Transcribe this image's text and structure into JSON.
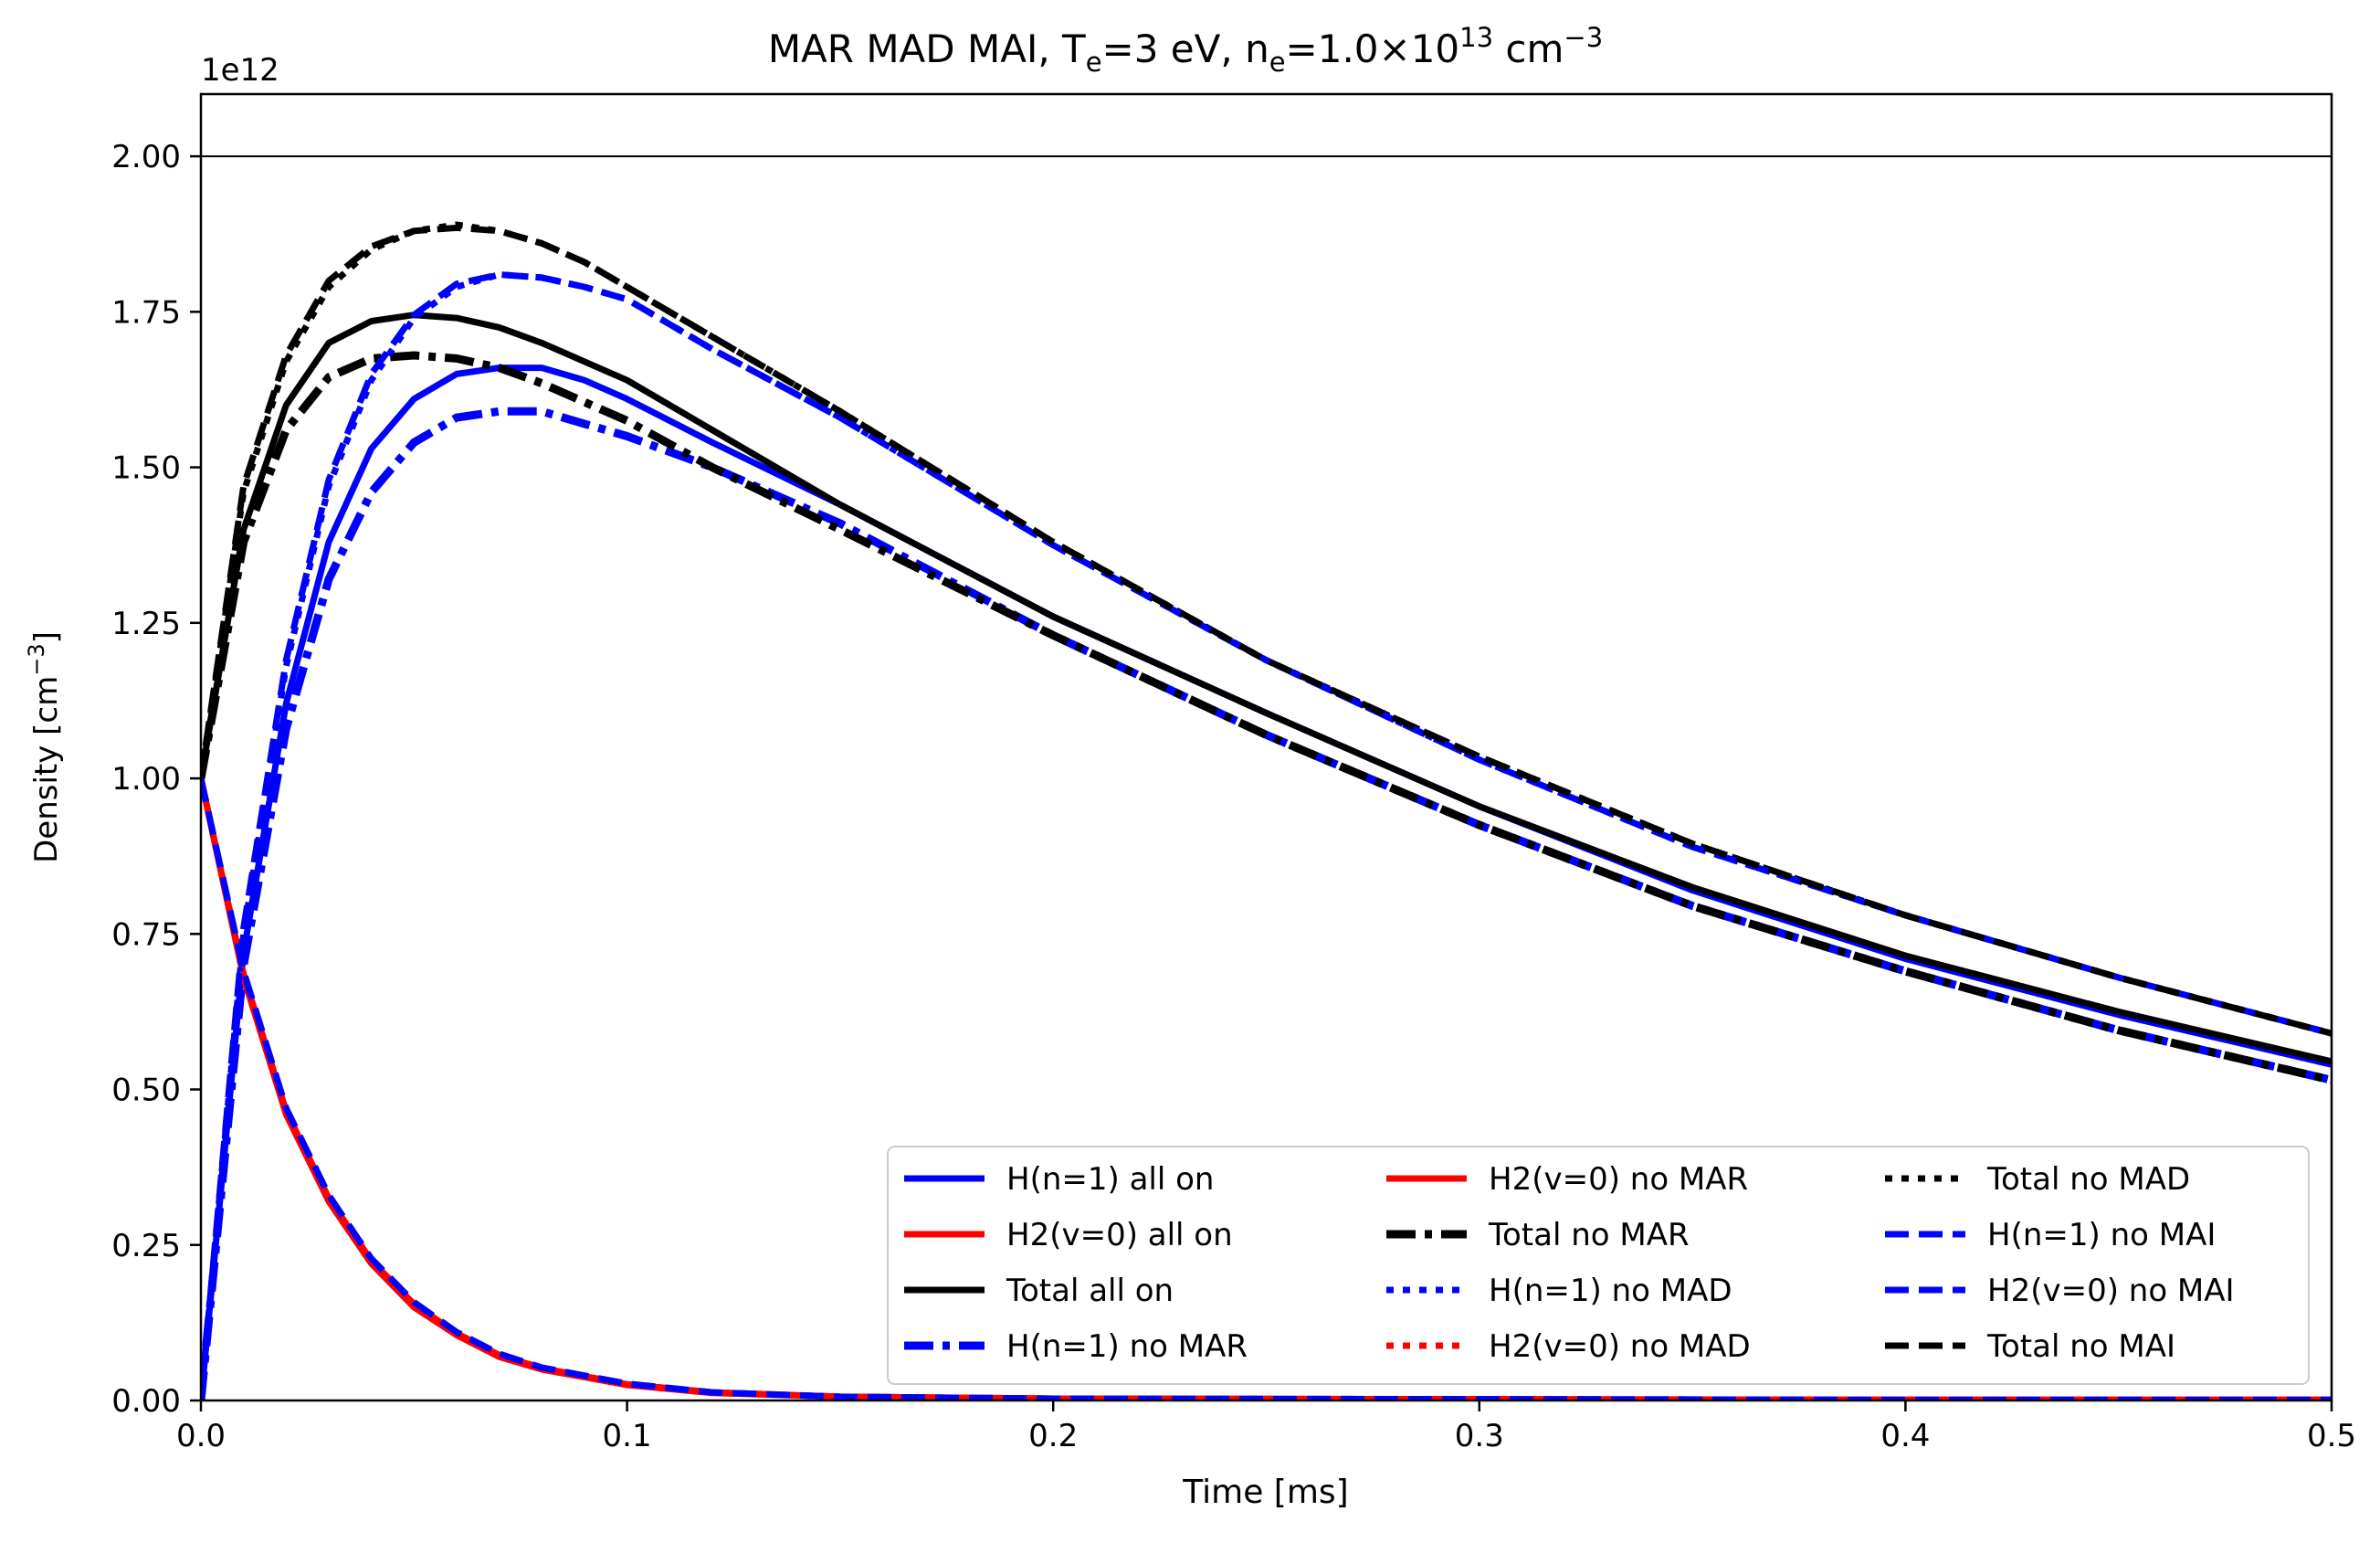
{
  "chart_data": {
    "type": "line",
    "title_main": "MAR MAD MAI,  T",
    "title_sub_e1": "e",
    "title_mid": "=3 eV, n",
    "title_sub_e2": "e",
    "title_mid2": "=1.0×10",
    "title_sup13": "13",
    "title_unit": " cm",
    "title_unit_sup": "−3",
    "xlabel": "Time [ms]",
    "ylabel_main": "Density [cm",
    "ylabel_sup": "−3",
    "ylabel_close": "]",
    "y_offset_label": "1e12",
    "xlim": [
      0,
      0.5
    ],
    "ylim": [
      0,
      2.1
    ],
    "x_ticks": [
      0.0,
      0.1,
      0.2,
      0.3,
      0.4,
      0.5
    ],
    "x_tick_labels": [
      "0.0",
      "0.1",
      "0.2",
      "0.3",
      "0.4",
      "0.5"
    ],
    "y_ticks": [
      0.0,
      0.25,
      0.5,
      0.75,
      1.0,
      1.25,
      1.5,
      1.75,
      2.0
    ],
    "y_tick_labels": [
      "0.00",
      "0.25",
      "0.50",
      "0.75",
      "1.00",
      "1.25",
      "1.50",
      "1.75",
      "2.00"
    ],
    "reference_line_y": 2.0,
    "grid": false,
    "legend_position": "lower-right",
    "legend_columns": 3,
    "colors": {
      "blue": "#0000ff",
      "red": "#ff0000",
      "black": "#000000"
    },
    "series": [
      {
        "name": "H(n=1) all on",
        "color": "#0000ff",
        "style": "solid",
        "x": [
          0,
          0.01,
          0.02,
          0.03,
          0.04,
          0.05,
          0.06,
          0.07,
          0.08,
          0.09,
          0.1,
          0.12,
          0.15,
          0.2,
          0.25,
          0.3,
          0.35,
          0.4,
          0.45,
          0.5
        ],
        "y": [
          0,
          0.72,
          1.12,
          1.38,
          1.53,
          1.61,
          1.65,
          1.66,
          1.66,
          1.64,
          1.61,
          1.54,
          1.44,
          1.26,
          1.105,
          0.955,
          0.82,
          0.71,
          0.62,
          0.54
        ]
      },
      {
        "name": "H2(v=0) all on",
        "color": "#ff0000",
        "style": "solid",
        "x": [
          0,
          0.01,
          0.02,
          0.03,
          0.04,
          0.05,
          0.06,
          0.07,
          0.08,
          0.1,
          0.12,
          0.15,
          0.2,
          0.3,
          0.4,
          0.5
        ],
        "y": [
          1.0,
          0.68,
          0.46,
          0.32,
          0.22,
          0.15,
          0.105,
          0.07,
          0.05,
          0.025,
          0.012,
          0.006,
          0.003,
          0.002,
          0.001,
          0.001
        ]
      },
      {
        "name": "Total all on",
        "color": "#000000",
        "style": "solid",
        "x": [
          0,
          0.01,
          0.02,
          0.03,
          0.04,
          0.05,
          0.06,
          0.07,
          0.08,
          0.09,
          0.1,
          0.12,
          0.15,
          0.2,
          0.25,
          0.3,
          0.35,
          0.4,
          0.45,
          0.5
        ],
        "y": [
          1.0,
          1.4,
          1.6,
          1.7,
          1.735,
          1.745,
          1.74,
          1.725,
          1.7,
          1.67,
          1.64,
          1.56,
          1.44,
          1.26,
          1.105,
          0.955,
          0.825,
          0.715,
          0.625,
          0.545
        ]
      },
      {
        "name": "H(n=1) no MAR",
        "color": "#0000ff",
        "style": "dashdot",
        "x": [
          0,
          0.01,
          0.02,
          0.03,
          0.04,
          0.05,
          0.06,
          0.07,
          0.08,
          0.09,
          0.1,
          0.12,
          0.15,
          0.2,
          0.25,
          0.3,
          0.35,
          0.4,
          0.45,
          0.5
        ],
        "y": [
          0,
          0.7,
          1.08,
          1.32,
          1.46,
          1.54,
          1.58,
          1.59,
          1.59,
          1.57,
          1.55,
          1.5,
          1.41,
          1.23,
          1.07,
          0.925,
          0.795,
          0.69,
          0.595,
          0.515
        ]
      },
      {
        "name": "H2(v=0) no MAR",
        "color": "#ff0000",
        "style": "solid",
        "x": [
          0,
          0.01,
          0.02,
          0.03,
          0.04,
          0.05,
          0.06,
          0.07,
          0.08,
          0.1,
          0.12,
          0.15,
          0.2,
          0.3,
          0.4,
          0.5
        ],
        "y": [
          1.0,
          0.685,
          0.465,
          0.325,
          0.225,
          0.155,
          0.108,
          0.073,
          0.052,
          0.026,
          0.013,
          0.006,
          0.003,
          0.002,
          0.001,
          0.001
        ]
      },
      {
        "name": "Total no MAR",
        "color": "#000000",
        "style": "dashdot",
        "x": [
          0,
          0.01,
          0.02,
          0.03,
          0.04,
          0.05,
          0.06,
          0.07,
          0.08,
          0.09,
          0.1,
          0.12,
          0.15,
          0.2,
          0.25,
          0.3,
          0.35,
          0.4,
          0.45,
          0.5
        ],
        "y": [
          1.0,
          1.38,
          1.56,
          1.645,
          1.675,
          1.68,
          1.675,
          1.66,
          1.635,
          1.605,
          1.575,
          1.5,
          1.4,
          1.23,
          1.07,
          0.925,
          0.795,
          0.69,
          0.595,
          0.515
        ]
      },
      {
        "name": "H(n=1) no MAD",
        "color": "#0000ff",
        "style": "dotted",
        "x": [
          0,
          0.01,
          0.02,
          0.03,
          0.04,
          0.05,
          0.06,
          0.07,
          0.08,
          0.09,
          0.1,
          0.12,
          0.15,
          0.2,
          0.25,
          0.3,
          0.35,
          0.4,
          0.45,
          0.5
        ],
        "y": [
          0,
          0.75,
          1.18,
          1.47,
          1.64,
          1.74,
          1.79,
          1.81,
          1.805,
          1.79,
          1.77,
          1.69,
          1.58,
          1.375,
          1.19,
          1.03,
          0.89,
          0.78,
          0.68,
          0.59
        ]
      },
      {
        "name": "H2(v=0) no MAD",
        "color": "#ff0000",
        "style": "dotted",
        "x": [
          0,
          0.01,
          0.02,
          0.03,
          0.04,
          0.05,
          0.06,
          0.07,
          0.08,
          0.1,
          0.12,
          0.15,
          0.2,
          0.3,
          0.4,
          0.5
        ],
        "y": [
          1.0,
          0.685,
          0.465,
          0.325,
          0.225,
          0.155,
          0.108,
          0.073,
          0.052,
          0.026,
          0.013,
          0.006,
          0.003,
          0.002,
          0.001,
          0.001
        ]
      },
      {
        "name": "Total no MAD",
        "color": "#000000",
        "style": "dotted",
        "x": [
          0,
          0.01,
          0.02,
          0.03,
          0.04,
          0.05,
          0.06,
          0.07,
          0.08,
          0.09,
          0.1,
          0.12,
          0.15,
          0.2,
          0.25,
          0.3,
          0.35,
          0.4,
          0.45,
          0.5
        ],
        "y": [
          1.0,
          1.46,
          1.67,
          1.79,
          1.85,
          1.88,
          1.89,
          1.88,
          1.86,
          1.83,
          1.79,
          1.71,
          1.59,
          1.38,
          1.19,
          1.035,
          0.895,
          0.78,
          0.68,
          0.59
        ]
      },
      {
        "name": "H(n=1) no MAI",
        "color": "#0000ff",
        "style": "dashed",
        "x": [
          0,
          0.01,
          0.02,
          0.03,
          0.04,
          0.05,
          0.06,
          0.07,
          0.08,
          0.09,
          0.1,
          0.12,
          0.15,
          0.2,
          0.25,
          0.3,
          0.35,
          0.4,
          0.45,
          0.5
        ],
        "y": [
          0,
          0.76,
          1.19,
          1.48,
          1.65,
          1.745,
          1.795,
          1.81,
          1.805,
          1.79,
          1.77,
          1.69,
          1.58,
          1.375,
          1.19,
          1.03,
          0.89,
          0.78,
          0.68,
          0.59
        ]
      },
      {
        "name": "H2(v=0) no MAI",
        "color": "#0000ff",
        "style": "dashed",
        "x": [
          0,
          0.01,
          0.02,
          0.03,
          0.04,
          0.05,
          0.06,
          0.07,
          0.08,
          0.1,
          0.12,
          0.15,
          0.2,
          0.3,
          0.4,
          0.5
        ],
        "y": [
          1.0,
          0.69,
          0.47,
          0.33,
          0.228,
          0.158,
          0.11,
          0.075,
          0.053,
          0.027,
          0.013,
          0.006,
          0.003,
          0.002,
          0.001,
          0.001
        ]
      },
      {
        "name": "Total no MAI",
        "color": "#000000",
        "style": "dashed",
        "x": [
          0,
          0.01,
          0.02,
          0.03,
          0.04,
          0.05,
          0.06,
          0.07,
          0.08,
          0.09,
          0.1,
          0.12,
          0.15,
          0.2,
          0.25,
          0.3,
          0.35,
          0.4,
          0.45,
          0.5
        ],
        "y": [
          1.0,
          1.47,
          1.68,
          1.8,
          1.855,
          1.88,
          1.885,
          1.88,
          1.86,
          1.83,
          1.79,
          1.71,
          1.59,
          1.38,
          1.19,
          1.035,
          0.895,
          0.78,
          0.68,
          0.59
        ]
      }
    ]
  }
}
